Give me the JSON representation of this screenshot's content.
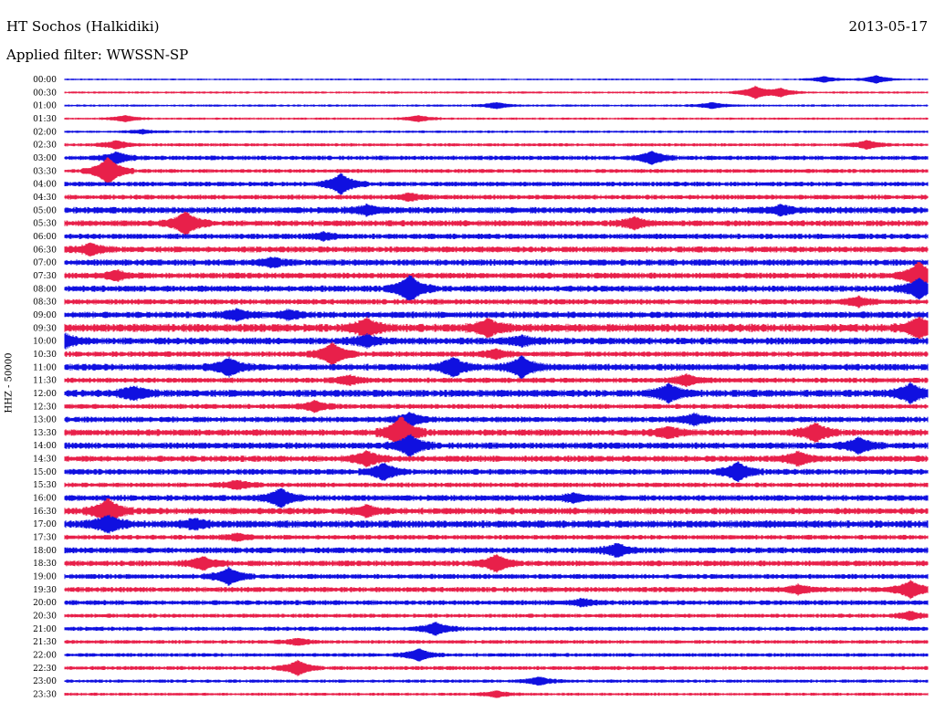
{
  "header": {
    "station": "HT Sochos (Halkidiki)",
    "date": "2013-05-17",
    "filter": "Applied filter: WWSSN-SP"
  },
  "chart_data": {
    "type": "line",
    "title": "HT Sochos (Halkidiki)",
    "ylabel": "HHZ - 50000",
    "colors": [
      "#1010e0",
      "#e8204a"
    ],
    "grid": false,
    "series": [
      {
        "name": "00:00",
        "color": "#1010e0",
        "noise": 0.7,
        "events": [
          {
            "t": 0.94,
            "a": 4
          },
          {
            "t": 0.88,
            "a": 3
          }
        ]
      },
      {
        "name": "00:30",
        "color": "#e8204a",
        "noise": 0.9,
        "events": [
          {
            "t": 0.8,
            "a": 6
          },
          {
            "t": 0.83,
            "a": 4
          }
        ]
      },
      {
        "name": "01:00",
        "color": "#1010e0",
        "noise": 0.9,
        "events": [
          {
            "t": 0.5,
            "a": 3
          },
          {
            "t": 0.75,
            "a": 3
          }
        ]
      },
      {
        "name": "01:30",
        "color": "#e8204a",
        "noise": 0.9,
        "events": [
          {
            "t": 0.07,
            "a": 3
          },
          {
            "t": 0.41,
            "a": 3
          }
        ]
      },
      {
        "name": "02:00",
        "color": "#1010e0",
        "noise": 1.0,
        "events": [
          {
            "t": 0.09,
            "a": 2
          }
        ]
      },
      {
        "name": "02:30",
        "color": "#e8204a",
        "noise": 1.3,
        "events": [
          {
            "t": 0.06,
            "a": 4
          },
          {
            "t": 0.93,
            "a": 4
          }
        ]
      },
      {
        "name": "03:00",
        "color": "#1010e0",
        "noise": 1.8,
        "events": [
          {
            "t": 0.06,
            "a": 5
          },
          {
            "t": 0.68,
            "a": 6
          }
        ]
      },
      {
        "name": "03:30",
        "color": "#e8204a",
        "noise": 1.6,
        "events": [
          {
            "t": 0.05,
            "a": 14
          }
        ]
      },
      {
        "name": "04:00",
        "color": "#1010e0",
        "noise": 1.9,
        "events": [
          {
            "t": 0.32,
            "a": 10
          }
        ]
      },
      {
        "name": "04:30",
        "color": "#e8204a",
        "noise": 1.9,
        "events": [
          {
            "t": 0.4,
            "a": 3
          }
        ]
      },
      {
        "name": "05:00",
        "color": "#1010e0",
        "noise": 2.6,
        "events": [
          {
            "t": 0.35,
            "a": 4
          },
          {
            "t": 0.83,
            "a": 4
          }
        ]
      },
      {
        "name": "05:30",
        "color": "#e8204a",
        "noise": 2.4,
        "events": [
          {
            "t": 0.14,
            "a": 11
          },
          {
            "t": 0.66,
            "a": 5
          }
        ]
      },
      {
        "name": "06:00",
        "color": "#1010e0",
        "noise": 2.2,
        "events": [
          {
            "t": 0.3,
            "a": 3
          }
        ]
      },
      {
        "name": "06:30",
        "color": "#e8204a",
        "noise": 2.4,
        "events": [
          {
            "t": 0.03,
            "a": 5
          }
        ]
      },
      {
        "name": "07:00",
        "color": "#1010e0",
        "noise": 2.5,
        "events": [
          {
            "t": 0.24,
            "a": 4
          }
        ]
      },
      {
        "name": "07:30",
        "color": "#e8204a",
        "noise": 2.4,
        "events": [
          {
            "t": 0.06,
            "a": 4
          },
          {
            "t": 0.99,
            "a": 14
          }
        ]
      },
      {
        "name": "08:00",
        "color": "#1010e0",
        "noise": 2.5,
        "events": [
          {
            "t": 0.4,
            "a": 13
          },
          {
            "t": 0.99,
            "a": 10
          }
        ]
      },
      {
        "name": "08:30",
        "color": "#e8204a",
        "noise": 2.2,
        "events": [
          {
            "t": 0.92,
            "a": 4
          }
        ]
      },
      {
        "name": "09:00",
        "color": "#1010e0",
        "noise": 2.6,
        "events": [
          {
            "t": 0.2,
            "a": 5
          },
          {
            "t": 0.26,
            "a": 4
          }
        ]
      },
      {
        "name": "09:30",
        "color": "#e8204a",
        "noise": 3.2,
        "events": [
          {
            "t": 0.35,
            "a": 9
          },
          {
            "t": 0.49,
            "a": 8
          },
          {
            "t": 0.99,
            "a": 10
          }
        ]
      },
      {
        "name": "10:00",
        "color": "#1010e0",
        "noise": 2.8,
        "events": [
          {
            "t": 0.0,
            "a": 6
          },
          {
            "t": 0.35,
            "a": 5
          },
          {
            "t": 0.53,
            "a": 4
          }
        ]
      },
      {
        "name": "10:30",
        "color": "#e8204a",
        "noise": 2.2,
        "events": [
          {
            "t": 0.31,
            "a": 11
          },
          {
            "t": 0.5,
            "a": 4
          }
        ]
      },
      {
        "name": "11:00",
        "color": "#1010e0",
        "noise": 2.7,
        "events": [
          {
            "t": 0.19,
            "a": 8
          },
          {
            "t": 0.45,
            "a": 9
          },
          {
            "t": 0.53,
            "a": 10
          }
        ]
      },
      {
        "name": "11:30",
        "color": "#e8204a",
        "noise": 2.1,
        "events": [
          {
            "t": 0.33,
            "a": 4
          },
          {
            "t": 0.72,
            "a": 5
          }
        ]
      },
      {
        "name": "12:00",
        "color": "#1010e0",
        "noise": 2.9,
        "events": [
          {
            "t": 0.08,
            "a": 6
          },
          {
            "t": 0.7,
            "a": 8
          },
          {
            "t": 0.98,
            "a": 9
          }
        ]
      },
      {
        "name": "12:30",
        "color": "#e8204a",
        "noise": 2.0,
        "events": [
          {
            "t": 0.29,
            "a": 5
          }
        ]
      },
      {
        "name": "13:00",
        "color": "#1010e0",
        "noise": 2.3,
        "events": [
          {
            "t": 0.4,
            "a": 6
          },
          {
            "t": 0.73,
            "a": 5
          }
        ]
      },
      {
        "name": "13:30",
        "color": "#e8204a",
        "noise": 2.6,
        "events": [
          {
            "t": 0.39,
            "a": 16
          },
          {
            "t": 0.87,
            "a": 9
          },
          {
            "t": 0.7,
            "a": 5
          }
        ]
      },
      {
        "name": "14:00",
        "color": "#1010e0",
        "noise": 2.6,
        "events": [
          {
            "t": 0.4,
            "a": 10
          },
          {
            "t": 0.92,
            "a": 7
          }
        ]
      },
      {
        "name": "14:30",
        "color": "#e8204a",
        "noise": 2.5,
        "events": [
          {
            "t": 0.35,
            "a": 7
          },
          {
            "t": 0.85,
            "a": 6
          }
        ]
      },
      {
        "name": "15:00",
        "color": "#1010e0",
        "noise": 2.3,
        "events": [
          {
            "t": 0.37,
            "a": 8
          },
          {
            "t": 0.78,
            "a": 9
          }
        ]
      },
      {
        "name": "15:30",
        "color": "#e8204a",
        "noise": 1.9,
        "events": [
          {
            "t": 0.2,
            "a": 4
          }
        ]
      },
      {
        "name": "16:00",
        "color": "#1010e0",
        "noise": 2.4,
        "events": [
          {
            "t": 0.25,
            "a": 9
          },
          {
            "t": 0.59,
            "a": 4
          }
        ]
      },
      {
        "name": "16:30",
        "color": "#e8204a",
        "noise": 2.6,
        "events": [
          {
            "t": 0.05,
            "a": 12
          },
          {
            "t": 0.35,
            "a": 5
          }
        ]
      },
      {
        "name": "17:00",
        "color": "#1010e0",
        "noise": 3.0,
        "events": [
          {
            "t": 0.05,
            "a": 8
          },
          {
            "t": 0.15,
            "a": 4
          }
        ]
      },
      {
        "name": "17:30",
        "color": "#e8204a",
        "noise": 1.9,
        "events": [
          {
            "t": 0.2,
            "a": 3
          }
        ]
      },
      {
        "name": "18:00",
        "color": "#1010e0",
        "noise": 2.4,
        "events": [
          {
            "t": 0.64,
            "a": 6
          }
        ]
      },
      {
        "name": "18:30",
        "color": "#e8204a",
        "noise": 2.3,
        "events": [
          {
            "t": 0.16,
            "a": 6
          },
          {
            "t": 0.5,
            "a": 8
          }
        ]
      },
      {
        "name": "19:00",
        "color": "#1010e0",
        "noise": 2.0,
        "events": [
          {
            "t": 0.19,
            "a": 8
          }
        ]
      },
      {
        "name": "19:30",
        "color": "#e8204a",
        "noise": 2.1,
        "events": [
          {
            "t": 0.85,
            "a": 4
          },
          {
            "t": 0.98,
            "a": 8
          }
        ]
      },
      {
        "name": "20:00",
        "color": "#1010e0",
        "noise": 2.0,
        "events": [
          {
            "t": 0.6,
            "a": 3
          }
        ]
      },
      {
        "name": "20:30",
        "color": "#e8204a",
        "noise": 1.6,
        "events": [
          {
            "t": 0.98,
            "a": 4
          }
        ]
      },
      {
        "name": "21:00",
        "color": "#1010e0",
        "noise": 1.7,
        "events": [
          {
            "t": 0.43,
            "a": 6
          }
        ]
      },
      {
        "name": "21:30",
        "color": "#e8204a",
        "noise": 1.5,
        "events": [
          {
            "t": 0.27,
            "a": 3
          }
        ]
      },
      {
        "name": "22:00",
        "color": "#1010e0",
        "noise": 1.5,
        "events": [
          {
            "t": 0.41,
            "a": 6
          }
        ]
      },
      {
        "name": "22:30",
        "color": "#e8204a",
        "noise": 1.6,
        "events": [
          {
            "t": 0.27,
            "a": 7
          }
        ]
      },
      {
        "name": "23:00",
        "color": "#1010e0",
        "noise": 1.3,
        "events": [
          {
            "t": 0.55,
            "a": 4
          }
        ]
      },
      {
        "name": "23:30",
        "color": "#e8204a",
        "noise": 1.2,
        "events": [
          {
            "t": 0.5,
            "a": 3
          }
        ]
      }
    ]
  }
}
